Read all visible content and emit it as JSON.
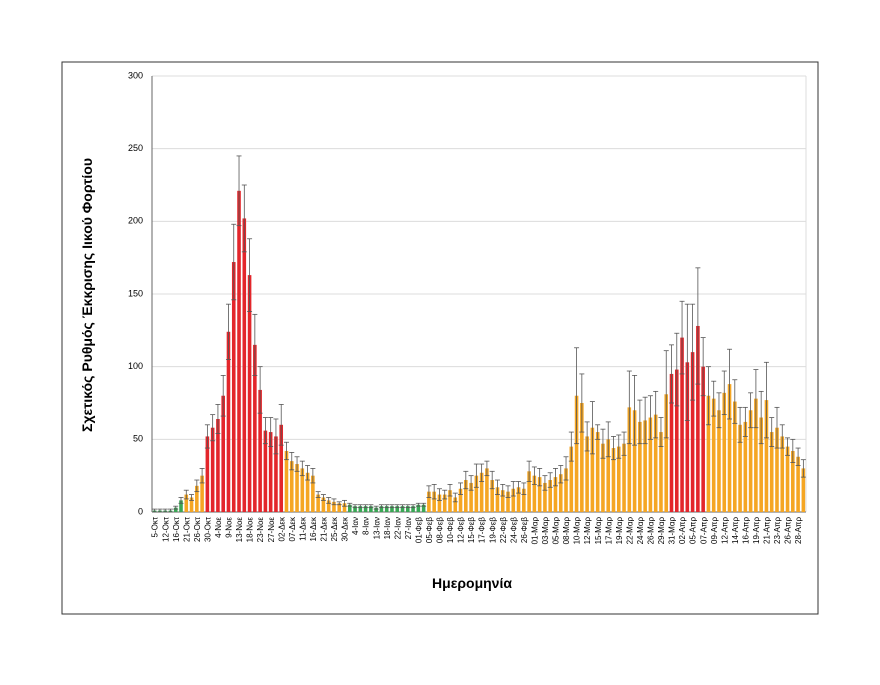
{
  "chart_data": {
    "type": "bar",
    "y_label": "Σχετικός Ρυθμός Έκκρισης Ιικού Φορτίου",
    "x_label": "Ημερομηνία",
    "categories": [
      "5-Οκτ",
      null,
      "12-Οκτ",
      null,
      "16-Οκτ",
      null,
      "21-Οκτ",
      null,
      "26-Οκτ",
      null,
      "30-Οκτ",
      null,
      "4-Νοε",
      null,
      "9-Νοε",
      null,
      "13-Νοε",
      null,
      "18-Νοε",
      null,
      "23-Νοε",
      null,
      "27-Νοε",
      null,
      "02-Δεκ",
      null,
      "07-Δεκ",
      null,
      "11-Δεκ",
      null,
      "16-Δεκ",
      null,
      "21-Δεκ",
      null,
      "25-Δεκ",
      null,
      "30-Δεκ",
      null,
      "4-Ιαν",
      null,
      "8-Ιαν",
      null,
      "13-Ιαν",
      null,
      "18-Ιαν",
      null,
      "22-Ιαν",
      null,
      "27-Ιαν",
      null,
      "01-Φεβ",
      null,
      "05-Φεβ",
      null,
      "08-Φεβ",
      null,
      "10-Φεβ",
      null,
      "12-Φεβ",
      null,
      "15-Φεβ",
      null,
      "17-Φεβ",
      null,
      "19-Φεβ",
      null,
      "22-Φεβ",
      null,
      "24-Φεβ",
      null,
      "26-Φεβ",
      null,
      "01-Μαρ",
      null,
      "03-Μαρ",
      null,
      "05-Μαρ",
      null,
      "08-Μαρ",
      null,
      "10-Μαρ",
      null,
      "12-Μαρ",
      null,
      "15-Μαρ",
      null,
      "17-Μαρ",
      null,
      "19-Μαρ",
      null,
      "22-Μαρ",
      null,
      "24-Μαρ",
      null,
      "26-Μαρ",
      null,
      "29-Μαρ",
      null,
      "31-Μαρ",
      null,
      "02-Απρ",
      null,
      "05-Απρ",
      null,
      "07-Απρ",
      null,
      "09-Απρ",
      null,
      "12-Απρ",
      null,
      "14-Απρ",
      null,
      "16-Απρ",
      null,
      "19-Απρ",
      null,
      "21-Απρ",
      null,
      "23-Απρ",
      null,
      "26-Απρ",
      null,
      "28-Απρ",
      null
    ],
    "values": [
      1,
      1,
      1,
      1,
      3,
      8,
      12,
      10,
      18,
      25,
      52,
      58,
      64,
      80,
      124,
      172,
      221,
      202,
      163,
      115,
      84,
      56,
      55,
      52,
      60,
      42,
      35,
      33,
      30,
      27,
      25,
      12,
      10,
      8,
      7,
      6,
      6,
      5,
      4,
      4,
      4,
      4,
      3,
      4,
      4,
      4,
      4,
      4,
      4,
      4,
      5,
      5,
      14,
      14,
      12,
      12,
      15,
      10,
      16,
      22,
      20,
      25,
      27,
      30,
      22,
      17,
      15,
      14,
      16,
      17,
      16,
      28,
      25,
      24,
      20,
      22,
      24,
      26,
      30,
      45,
      80,
      75,
      52,
      58,
      55,
      47,
      50,
      44,
      45,
      47,
      72,
      70,
      62,
      63,
      65,
      67,
      55,
      81,
      95,
      98,
      120,
      103,
      110,
      128,
      100,
      80,
      78,
      70,
      82,
      88,
      76,
      60,
      62,
      70,
      78,
      65,
      77,
      55,
      58,
      52,
      45,
      42,
      38,
      30
    ],
    "errors": [
      1,
      1,
      1,
      1,
      1,
      2,
      3,
      2,
      4,
      5,
      8,
      9,
      10,
      14,
      19,
      26,
      24,
      23,
      25,
      21,
      16,
      9,
      10,
      12,
      14,
      6,
      6,
      5,
      5,
      5,
      5,
      2,
      2,
      2,
      2,
      1,
      2,
      1,
      1,
      1,
      1,
      1,
      1,
      1,
      1,
      1,
      1,
      1,
      1,
      1,
      1,
      1,
      4,
      5,
      4,
      3,
      4,
      3,
      4,
      6,
      5,
      8,
      6,
      5,
      6,
      5,
      4,
      4,
      5,
      4,
      4,
      7,
      6,
      6,
      5,
      5,
      6,
      6,
      8,
      10,
      33,
      20,
      10,
      18,
      5,
      10,
      12,
      8,
      8,
      8,
      25,
      24,
      15,
      16,
      15,
      16,
      10,
      30,
      20,
      25,
      25,
      40,
      33,
      40,
      20,
      20,
      12,
      12,
      15,
      24,
      15,
      12,
      10,
      12,
      20,
      18,
      26,
      10,
      14,
      8,
      6,
      8,
      6,
      6
    ],
    "bar_colors": [
      "#3aa655",
      "#3aa655",
      "#3aa655",
      "#3aa655",
      "#3aa655",
      "#3aa655",
      "#f5a623",
      "#f5a623",
      "#f5a623",
      "#f5a623",
      "#e3262b",
      "#e3262b",
      "#e3262b",
      "#e3262b",
      "#e3262b",
      "#e3262b",
      "#e3262b",
      "#e3262b",
      "#e3262b",
      "#e3262b",
      "#e3262b",
      "#e3262b",
      "#e3262b",
      "#e3262b",
      "#e3262b",
      "#f5a623",
      "#f5a623",
      "#f5a623",
      "#f5a623",
      "#f5a623",
      "#f5a623",
      "#f5a623",
      "#f5a623",
      "#f5a623",
      "#f5a623",
      "#f5a623",
      "#f5a623",
      "#3aa655",
      "#3aa655",
      "#3aa655",
      "#3aa655",
      "#3aa655",
      "#3aa655",
      "#3aa655",
      "#3aa655",
      "#3aa655",
      "#3aa655",
      "#3aa655",
      "#3aa655",
      "#3aa655",
      "#3aa655",
      "#3aa655",
      "#f5a623",
      "#f5a623",
      "#f5a623",
      "#f5a623",
      "#f5a623",
      "#f5a623",
      "#f5a623",
      "#f5a623",
      "#f5a623",
      "#f5a623",
      "#f5a623",
      "#f5a623",
      "#f5a623",
      "#f5a623",
      "#f5a623",
      "#f5a623",
      "#f5a623",
      "#f5a623",
      "#f5a623",
      "#f5a623",
      "#f5a623",
      "#f5a623",
      "#f5a623",
      "#f5a623",
      "#f5a623",
      "#f5a623",
      "#f5a623",
      "#f5a623",
      "#f5a623",
      "#f5a623",
      "#f5a623",
      "#f5a623",
      "#f5a623",
      "#f5a623",
      "#f5a623",
      "#f5a623",
      "#f5a623",
      "#f5a623",
      "#f5a623",
      "#f5a623",
      "#f5a623",
      "#f5a623",
      "#f5a623",
      "#f5a623",
      "#f5a623",
      "#f5a623",
      "#e3262b",
      "#e3262b",
      "#e3262b",
      "#e3262b",
      "#e3262b",
      "#e3262b",
      "#e3262b",
      "#f5a623",
      "#f5a623",
      "#f5a623",
      "#f5a623",
      "#f5a623",
      "#f5a623",
      "#f5a623",
      "#f5a623",
      "#f5a623",
      "#f5a623",
      "#f5a623",
      "#f5a623",
      "#f5a623",
      "#f5a623",
      "#f5a623",
      "#f5a623",
      "#f5a623",
      "#f5a623",
      "#f5a623"
    ],
    "error_color": "#555555",
    "ylim": [
      0,
      300
    ],
    "yticks": [
      0,
      50,
      100,
      150,
      200,
      250,
      300
    ],
    "grid": true
  }
}
